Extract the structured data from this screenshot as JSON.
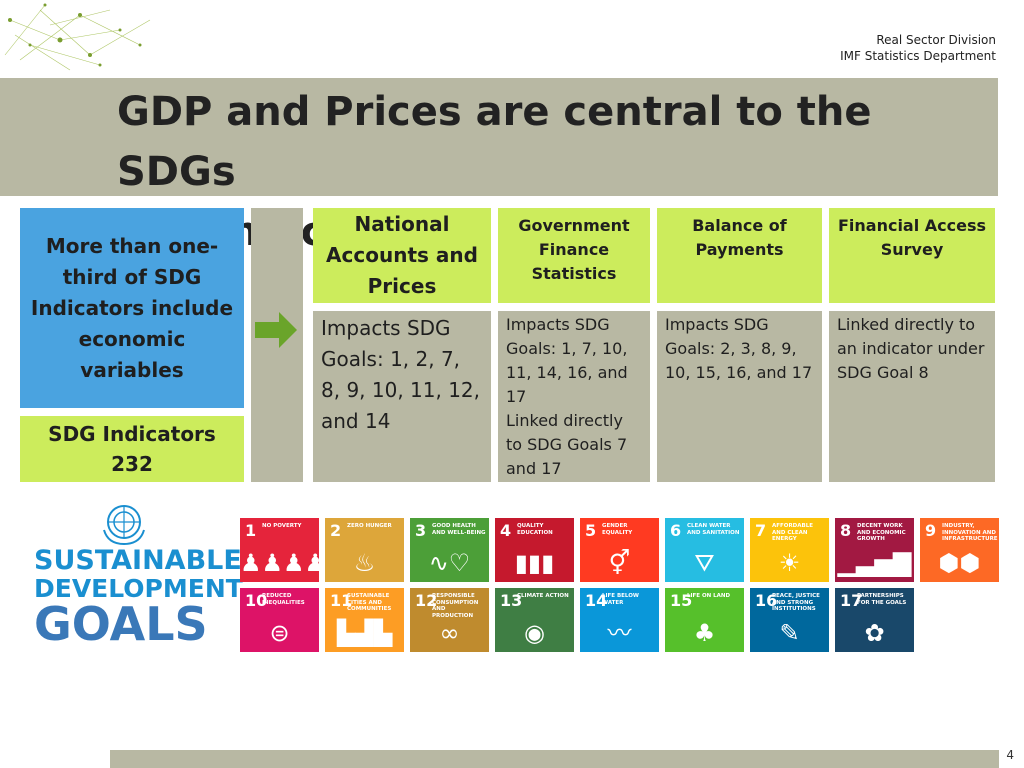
{
  "header": {
    "division": "Real Sector Division",
    "department": "IMF Statistics Department"
  },
  "slide": {
    "title_line1": "GDP and Prices are central to the SDGs",
    "title_line2": "and Indicators",
    "page_number": "4"
  },
  "left_panel": {
    "blue_text": "More than one-third of SDG Indicators include economic variables",
    "indicators_label": "SDG Indicators",
    "indicators_count": "232"
  },
  "columns": [
    {
      "heading": "National Accounts and Prices",
      "body": "Impacts SDG Goals: 1, 2, 7, 8, 9, 10, 11, 12, and 14"
    },
    {
      "heading": "Government Finance Statistics",
      "body": "Impacts SDG Goals: 1, 7, 10, 11, 14, 16, and 17",
      "body2": "Linked directly to SDG Goals 7 and 17"
    },
    {
      "heading": "Balance of Payments",
      "body": "Impacts SDG Goals: 2, 3, 8, 9, 10, 15, 16, and 17"
    },
    {
      "heading": "Financial Access Survey",
      "body": "Linked directly to an indicator under SDG Goal 8"
    }
  ],
  "sdg_logo": {
    "line1": "SUSTAINABLE",
    "line2": "DEVELOPMENT",
    "line3": "GOALS"
  },
  "goals": [
    {
      "num": "1",
      "label": "No Poverty",
      "color": "#e5243b",
      "icon": "family-icon",
      "glyph": "♟♟♟♟"
    },
    {
      "num": "2",
      "label": "Zero Hunger",
      "color": "#dda63a",
      "icon": "bowl-icon",
      "glyph": "♨"
    },
    {
      "num": "3",
      "label": "Good Health and Well-Being",
      "color": "#4c9f38",
      "icon": "heartbeat-icon",
      "glyph": "∿♡"
    },
    {
      "num": "4",
      "label": "Quality Education",
      "color": "#c5192d",
      "icon": "book-icon",
      "glyph": "▮▮▮"
    },
    {
      "num": "5",
      "label": "Gender Equality",
      "color": "#ff3a21",
      "icon": "gender-icon",
      "glyph": "⚥"
    },
    {
      "num": "6",
      "label": "Clean Water and Sanitation",
      "color": "#26bde2",
      "icon": "water-icon",
      "glyph": "⛛"
    },
    {
      "num": "7",
      "label": "Affordable and Clean Energy",
      "color": "#fcc30b",
      "icon": "sun-icon",
      "glyph": "☀"
    },
    {
      "num": "8",
      "label": "Decent Work and Economic Growth",
      "color": "#a21942",
      "icon": "growth-chart-icon",
      "glyph": "▁▃▅▇"
    },
    {
      "num": "9",
      "label": "Industry, Innovation and Infrastructure",
      "color": "#fd6925",
      "icon": "cubes-icon",
      "glyph": "⬢⬢"
    },
    {
      "num": "10",
      "label": "Reduced Inequalities",
      "color": "#dd1367",
      "icon": "equals-icon",
      "glyph": "⊜"
    },
    {
      "num": "11",
      "label": "Sustainable Cities and Communities",
      "color": "#fd9d24",
      "icon": "city-icon",
      "glyph": "▙▟▙"
    },
    {
      "num": "12",
      "label": "Responsible Consumption and Production",
      "color": "#bf8b2e",
      "icon": "infinity-icon",
      "glyph": "∞"
    },
    {
      "num": "13",
      "label": "Climate Action",
      "color": "#3f7e44",
      "icon": "eye-globe-icon",
      "glyph": "◉"
    },
    {
      "num": "14",
      "label": "Life Below Water",
      "color": "#0a97d9",
      "icon": "fish-icon",
      "glyph": "〰"
    },
    {
      "num": "15",
      "label": "Life on Land",
      "color": "#56c02b",
      "icon": "tree-icon",
      "glyph": "♣"
    },
    {
      "num": "16",
      "label": "Peace, Justice and Strong Institutions",
      "color": "#00689d",
      "icon": "dove-icon",
      "glyph": "✎"
    },
    {
      "num": "17",
      "label": "Partnerships for the Goals",
      "color": "#19486a",
      "icon": "rings-icon",
      "glyph": "✿"
    }
  ]
}
